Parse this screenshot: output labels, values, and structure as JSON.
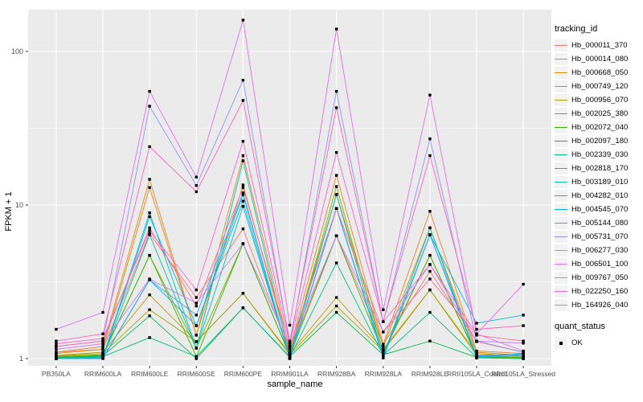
{
  "chart_data": {
    "type": "line",
    "title": "",
    "xlabel": "sample_name",
    "ylabel": "FPKM + 1",
    "y_scale": "log10",
    "y_ticks": [
      1,
      10,
      100
    ],
    "y_tick_labels": [
      "1",
      "10",
      "100"
    ],
    "y_minor_ticks": [
      3.162,
      31.62
    ],
    "ylim_log": [
      -0.05,
      2.29
    ],
    "grid": "on",
    "panel_color": "#EBEBEB",
    "gridline_color": "#FFFFFF",
    "tick_label_color": "#4D4D4D",
    "point_shape": "black-square",
    "legend_position": "right",
    "legend_title": "tracking_id",
    "point_legend": {
      "title": "quant_status",
      "label": "OK"
    },
    "categories": [
      "PB350LA",
      "RRIM600LA",
      "RRIM600LE",
      "RRIM600SE",
      "RRIM600PE",
      "RRIM901LA",
      "RRIM928BA",
      "RRIM928LA",
      "RRIM928LE",
      "RRII105LA_Control",
      "RRII105LA_Stressed"
    ],
    "series": [
      {
        "name": "Hb_000011_370",
        "color": "#F8766D",
        "values": [
          1.1,
          1.15,
          6.5,
          2.5,
          7.0,
          1.1,
          6.3,
          1.24,
          3.7,
          1.29,
          1.1
        ]
      },
      {
        "name": "Hb_000014_080",
        "color": "#EA8331",
        "values": [
          1.1,
          1.2,
          14.7,
          1.42,
          21.0,
          1.15,
          15.6,
          1.24,
          9.1,
          1.12,
          1.08
        ]
      },
      {
        "name": "Hb_000668_050",
        "color": "#D89000",
        "values": [
          1.08,
          1.15,
          13.0,
          1.42,
          13.5,
          1.1,
          11.7,
          1.2,
          7.1,
          1.1,
          1.05
        ]
      },
      {
        "name": "Hb_000749_120",
        "color": "#C09B00",
        "values": [
          1.05,
          1.1,
          2.6,
          1.29,
          2.66,
          1.08,
          2.5,
          1.15,
          2.8,
          1.08,
          1.03
        ]
      },
      {
        "name": "Hb_000956_070",
        "color": "#A3A500",
        "values": [
          1.04,
          1.08,
          2.08,
          1.29,
          2.66,
          1.06,
          2.2,
          1.12,
          2.8,
          1.05,
          1.02
        ]
      },
      {
        "name": "Hb_002025_380",
        "color": "#7CAE00",
        "values": [
          1.03,
          1.06,
          4.7,
          1.17,
          5.6,
          1.05,
          13.2,
          1.1,
          4.7,
          1.04,
          1.02
        ]
      },
      {
        "name": "Hb_002072_040",
        "color": "#39B600",
        "values": [
          1.02,
          1.05,
          4.7,
          1.03,
          5.6,
          1.04,
          6.3,
          1.08,
          4.7,
          1.03,
          1.01
        ]
      },
      {
        "name": "Hb_002097_180",
        "color": "#00BB4E",
        "values": [
          1.02,
          1.04,
          1.9,
          1.0,
          2.14,
          1.03,
          2.0,
          1.06,
          1.3,
          1.02,
          1.0
        ]
      },
      {
        "name": "Hb_002339_030",
        "color": "#00C087",
        "values": [
          1.01,
          1.03,
          1.37,
          1.03,
          2.14,
          1.02,
          4.2,
          1.05,
          2.0,
          1.02,
          1.0
        ]
      },
      {
        "name": "Hb_002818_170",
        "color": "#00C1A3",
        "values": [
          1.0,
          1.02,
          6.4,
          1.17,
          19.4,
          1.02,
          11.7,
          1.04,
          7.1,
          1.01,
          1.0
        ]
      },
      {
        "name": "Hb_003189_010",
        "color": "#00BFC4",
        "values": [
          1.0,
          1.02,
          8.9,
          1.17,
          9.8,
          1.01,
          9.5,
          1.03,
          6.4,
          1.01,
          1.08
        ]
      },
      {
        "name": "Hb_004282_010",
        "color": "#00BAE0",
        "values": [
          1.0,
          1.01,
          8.4,
          1.64,
          10.6,
          1.01,
          9.5,
          1.03,
          6.4,
          1.7,
          1.92
        ]
      },
      {
        "name": "Hb_004545_070",
        "color": "#00B0F6",
        "values": [
          1.0,
          1.01,
          3.26,
          1.64,
          11.7,
          1.0,
          9.5,
          1.02,
          6.4,
          1.05,
          1.07
        ]
      },
      {
        "name": "Hb_005144_080",
        "color": "#35A2FF",
        "values": [
          1.0,
          1.0,
          3.26,
          1.92,
          12.0,
          1.0,
          9.5,
          1.01,
          6.4,
          1.04,
          1.05
        ]
      },
      {
        "name": "Hb_005731_070",
        "color": "#9590FF",
        "values": [
          1.2,
          1.3,
          44.0,
          13.4,
          65.0,
          1.25,
          55.0,
          1.74,
          27.0,
          1.3,
          1.1
        ]
      },
      {
        "name": "Hb_006277_030",
        "color": "#C77CFF",
        "values": [
          1.15,
          1.25,
          3.3,
          2.3,
          5.6,
          1.2,
          6.3,
          1.49,
          4.1,
          1.3,
          1.26
        ]
      },
      {
        "name": "Hb_006501_100",
        "color": "#E76BF3",
        "values": [
          1.55,
          2.0,
          55.0,
          15.2,
          160.0,
          1.65,
          140.0,
          2.08,
          52.0,
          1.45,
          1.12
        ]
      },
      {
        "name": "Hb_009767_050",
        "color": "#FA62DB",
        "values": [
          1.25,
          1.35,
          6.8,
          2.8,
          26.0,
          1.25,
          22.0,
          1.74,
          4.1,
          1.45,
          3.05
        ]
      },
      {
        "name": "Hb_022250_160",
        "color": "#FF62BC",
        "values": [
          1.3,
          1.45,
          24.0,
          12.2,
          48.0,
          1.3,
          43.0,
          1.74,
          21.0,
          1.55,
          1.64
        ]
      },
      {
        "name": "Hb_164926_040",
        "color": "#FF6A98",
        "values": [
          1.2,
          1.3,
          7.1,
          2.2,
          13.0,
          1.2,
          9.5,
          1.49,
          3.3,
          1.42,
          1.3
        ]
      }
    ]
  }
}
